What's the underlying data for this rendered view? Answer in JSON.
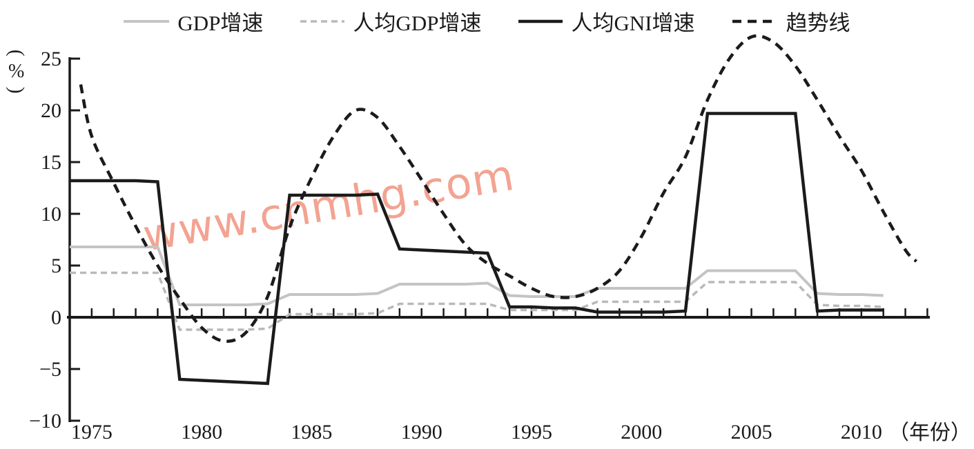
{
  "figure": {
    "watermark": {
      "text": "www.cnmhg.com",
      "color": "#f2947f"
    },
    "colors": {
      "axis": "#1a1a1a",
      "gray_line": "#c4c4c4",
      "gray_dashed_line": "#b9b9b9",
      "black_line": "#1b1b1b"
    }
  },
  "legend": [
    {
      "label": "GDP增速",
      "color": "#c4c4c4",
      "style": "solid",
      "dash": null,
      "width": 4
    },
    {
      "label": "人均GDP增速",
      "color": "#b9b9b9",
      "style": "dashed",
      "dash": "9 6",
      "width": 3.5
    },
    {
      "label": "人均GNI增速",
      "color": "#1b1b1b",
      "style": "solid",
      "dash": null,
      "width": 4.5
    },
    {
      "label": "趋势线",
      "color": "#1b1b1b",
      "style": "dashed",
      "dash": "13 9",
      "width": 4.5
    }
  ],
  "chart_data": {
    "type": "line",
    "y_axis": {
      "unit_label": "(%)",
      "ticks": [
        25,
        20,
        15,
        10,
        5,
        0,
        -5,
        -10
      ],
      "min": -10,
      "max": 25
    },
    "x_axis": {
      "unit_label": "（年份）",
      "labeled_years": [
        1975,
        1980,
        1985,
        1990,
        1995,
        2000,
        2005,
        2010
      ],
      "tick_interval_years": 1,
      "first_tick_year": 1975,
      "last_tick_year": 2013
    },
    "grid": false,
    "legend_position": "top",
    "series": [
      {
        "name": "GDP增速",
        "color": "#c4c4c4",
        "dash": null,
        "width": 4,
        "smooth": false,
        "start_year": 1974,
        "values": [
          6.8,
          6.8,
          6.8,
          6.8,
          6.8,
          1.2,
          1.2,
          1.2,
          1.2,
          1.3,
          2.2,
          2.2,
          2.2,
          2.2,
          2.3,
          3.2,
          3.2,
          3.2,
          3.2,
          3.3,
          2.1,
          2.0,
          2.0,
          2.0,
          2.8,
          2.8,
          2.8,
          2.8,
          2.8,
          4.5,
          4.5,
          4.5,
          4.5,
          4.5,
          2.3,
          2.2,
          2.2,
          2.1
        ]
      },
      {
        "name": "人均GDP增速",
        "color": "#b9b9b9",
        "dash": "9 6",
        "width": 3.5,
        "smooth": false,
        "start_year": 1974,
        "values": [
          4.3,
          4.3,
          4.3,
          4.3,
          4.3,
          -1.2,
          -1.2,
          -1.2,
          -1.2,
          -1.1,
          0.3,
          0.3,
          0.3,
          0.3,
          0.4,
          1.3,
          1.3,
          1.3,
          1.3,
          1.3,
          0.7,
          0.7,
          0.7,
          0.7,
          1.5,
          1.5,
          1.5,
          1.5,
          1.5,
          3.4,
          3.4,
          3.4,
          3.4,
          3.4,
          1.2,
          1.1,
          1.1,
          1.0
        ]
      },
      {
        "name": "人均GNI增速",
        "color": "#1b1b1b",
        "dash": null,
        "width": 4.5,
        "smooth": false,
        "start_year": 1974,
        "values": [
          13.2,
          13.2,
          13.2,
          13.2,
          13.1,
          -6.0,
          -6.1,
          -6.2,
          -6.3,
          -6.4,
          11.8,
          11.8,
          11.8,
          11.8,
          11.9,
          6.6,
          6.5,
          6.4,
          6.3,
          6.2,
          1.0,
          1.0,
          0.9,
          0.9,
          0.5,
          0.5,
          0.5,
          0.5,
          0.6,
          19.7,
          19.7,
          19.7,
          19.7,
          19.7,
          0.6,
          0.7,
          0.7,
          0.7
        ]
      },
      {
        "name": "趋势线",
        "color": "#1b1b1b",
        "dash": "13 9",
        "width": 4.5,
        "smooth": true,
        "years": [
          1974.5,
          1975,
          1976,
          1977,
          1978,
          1979,
          1980,
          1981,
          1982,
          1983,
          1984,
          1985,
          1986,
          1987,
          1988,
          1989,
          1990,
          1991,
          1992,
          1993,
          1994,
          1995,
          1996,
          1997,
          1998,
          1999,
          2000,
          2001,
          2002,
          2003,
          2004,
          2005,
          2006,
          2007,
          2008,
          2009,
          2010,
          2011,
          2012,
          2012.5
        ],
        "values": [
          22.5,
          17.5,
          13.0,
          8.8,
          5.0,
          1.8,
          -1.0,
          -2.3,
          -1.5,
          2.0,
          8.7,
          13.5,
          17.5,
          20.0,
          19.3,
          16.5,
          13.3,
          10.0,
          7.0,
          5.2,
          4.0,
          2.8,
          2.0,
          2.0,
          2.8,
          4.5,
          7.8,
          12.0,
          15.5,
          21.0,
          25.0,
          27.1,
          26.6,
          24.3,
          21.0,
          17.5,
          14.2,
          10.2,
          6.5,
          5.4
        ]
      }
    ]
  }
}
